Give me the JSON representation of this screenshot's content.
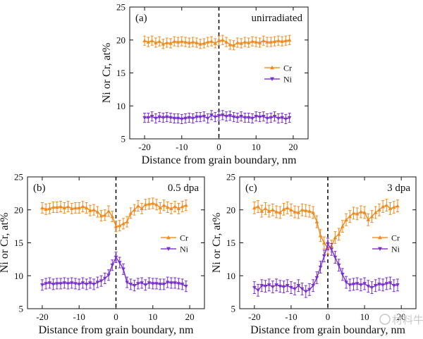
{
  "chart_data": [
    {
      "type": "line",
      "panel_label": "(a)",
      "annotation": "unirradiated",
      "xlabel": "Distance from grain boundary, nm",
      "ylabel": "Ni or Cr, at%",
      "xlim": [
        -24,
        24
      ],
      "ylim": [
        5,
        25
      ],
      "xticks": [
        "-20",
        "-10",
        "0",
        "10",
        "20"
      ],
      "yticks": [
        "5",
        "10",
        "15",
        "20",
        "25"
      ],
      "x": [
        -20,
        -19,
        -18,
        -17,
        -16,
        -15,
        -14,
        -13,
        -12,
        -11,
        -10,
        -9,
        -8,
        -7,
        -6,
        -5,
        -4,
        -3,
        -2,
        -1,
        0,
        1,
        2,
        3,
        4,
        5,
        6,
        7,
        8,
        9,
        10,
        11,
        12,
        13,
        14,
        15,
        16,
        17,
        18,
        19
      ],
      "series": [
        {
          "name": "Cr",
          "color": "#f28b1e",
          "marker": "triangle-up",
          "values": [
            19.9,
            19.7,
            19.9,
            19.6,
            19.8,
            19.4,
            19.6,
            19.5,
            19.8,
            19.7,
            19.8,
            19.7,
            19.6,
            19.7,
            19.6,
            19.4,
            19.5,
            19.7,
            19.8,
            19.5,
            19.9,
            20.0,
            19.7,
            19.3,
            19.2,
            19.6,
            19.5,
            19.7,
            19.6,
            19.8,
            19.7,
            19.6,
            19.9,
            19.7,
            19.7,
            19.8,
            19.9,
            19.8,
            19.9,
            20.0
          ],
          "error": 0.7
        },
        {
          "name": "Ni",
          "color": "#7a2fcf",
          "marker": "triangle-down",
          "values": [
            8.2,
            8.2,
            8.4,
            8.1,
            8.3,
            8.2,
            8.3,
            8.2,
            8.1,
            8.1,
            8.0,
            8.1,
            8.2,
            8.1,
            8.3,
            8.3,
            8.4,
            8.1,
            8.6,
            8.3,
            8.5,
            8.6,
            8.4,
            8.5,
            8.3,
            8.2,
            8.4,
            8.2,
            8.2,
            8.1,
            8.4,
            8.3,
            8.4,
            8.1,
            8.2,
            8.4,
            8.1,
            8.2,
            8.0,
            8.2
          ],
          "error": 0.7
        }
      ],
      "legend": [
        "Cr",
        "Ni"
      ]
    },
    {
      "type": "line",
      "panel_label": "(b)",
      "annotation": "0.5 dpa",
      "xlabel": "Distance from grain boundary, nm",
      "ylabel": "Ni or Cr, at%",
      "xlim": [
        -24,
        24
      ],
      "ylim": [
        5,
        25
      ],
      "xticks": [
        "-20",
        "-10",
        "0",
        "10",
        "20"
      ],
      "yticks": [
        "5",
        "10",
        "15",
        "20",
        "25"
      ],
      "x": [
        -20,
        -19,
        -18,
        -17,
        -16,
        -15,
        -14,
        -13,
        -12,
        -11,
        -10,
        -9,
        -8,
        -7,
        -6,
        -5,
        -4,
        -3,
        -2,
        -1,
        0,
        1,
        2,
        3,
        4,
        5,
        6,
        7,
        8,
        9,
        10,
        11,
        12,
        13,
        14,
        15,
        16,
        17,
        18,
        19
      ],
      "series": [
        {
          "name": "Cr",
          "color": "#f28b1e",
          "marker": "triangle-up",
          "values": [
            20.3,
            20.1,
            20.2,
            20.4,
            20.4,
            20.5,
            20.3,
            20.5,
            20.2,
            20.3,
            20.3,
            20.5,
            20.3,
            19.9,
            20.0,
            19.7,
            19.1,
            19.2,
            19.8,
            19.0,
            17.5,
            17.6,
            17.9,
            18.2,
            19.5,
            20.0,
            20.6,
            20.2,
            20.8,
            20.9,
            21.0,
            20.8,
            20.3,
            20.7,
            20.4,
            20.2,
            20.5,
            20.2,
            20.5,
            20.7
          ],
          "error": 0.8
        },
        {
          "name": "Ni",
          "color": "#7a2fcf",
          "marker": "triangle-down",
          "values": [
            8.6,
            8.8,
            8.9,
            8.7,
            8.8,
            8.8,
            8.9,
            8.8,
            8.9,
            8.8,
            8.7,
            8.9,
            8.7,
            8.9,
            8.7,
            9.0,
            9.2,
            9.6,
            10.1,
            11.6,
            12.8,
            12.0,
            11.0,
            9.0,
            8.7,
            8.5,
            8.8,
            8.9,
            8.6,
            8.9,
            8.8,
            8.8,
            8.7,
            8.7,
            9.0,
            8.9,
            8.9,
            8.8,
            8.7,
            8.4
          ],
          "error": 0.8
        }
      ],
      "legend": [
        "Cr",
        "Ni"
      ]
    },
    {
      "type": "line",
      "panel_label": "(c)",
      "annotation": "3 dpa",
      "xlabel": "Distance from grain boundary, nm",
      "ylabel": "Ni or Cr, at%",
      "xlim": [
        -24,
        24
      ],
      "ylim": [
        5,
        25
      ],
      "xticks": [
        "-20",
        "-10",
        "0",
        "10",
        "20"
      ],
      "yticks": [
        "5",
        "10",
        "15",
        "20",
        "25"
      ],
      "x": [
        -20,
        -19,
        -18,
        -17,
        -16,
        -15,
        -14,
        -13,
        -12,
        -11,
        -10,
        -9,
        -8,
        -7,
        -6,
        -5,
        -4,
        -3,
        -2,
        -1,
        0,
        1,
        2,
        3,
        4,
        5,
        6,
        7,
        8,
        9,
        10,
        11,
        12,
        13,
        14,
        15,
        16,
        17,
        18,
        19
      ],
      "series": [
        {
          "name": "Cr",
          "color": "#f28b1e",
          "marker": "triangle-up",
          "values": [
            20.3,
            20.5,
            19.8,
            20.2,
            19.8,
            20.0,
            19.7,
            19.6,
            20.1,
            20.3,
            20.0,
            19.7,
            19.6,
            20.0,
            19.9,
            19.8,
            19.6,
            18.2,
            16.1,
            15.0,
            14.2,
            14.5,
            15.8,
            16.3,
            17.5,
            18.5,
            19.0,
            19.5,
            19.4,
            19.7,
            19.6,
            18.5,
            19.0,
            19.6,
            20.0,
            20.5,
            20.7,
            20.2,
            20.4,
            20.6
          ],
          "error": 0.9
        },
        {
          "name": "Ni",
          "color": "#7a2fcf",
          "marker": "triangle-down",
          "values": [
            8.2,
            7.8,
            8.5,
            8.4,
            8.6,
            8.3,
            8.6,
            8.4,
            8.3,
            8.5,
            8.2,
            8.0,
            8.5,
            8.0,
            7.6,
            7.9,
            8.5,
            9.7,
            11.3,
            13.0,
            14.8,
            14.0,
            12.8,
            11.6,
            10.2,
            9.0,
            8.6,
            8.7,
            8.8,
            8.6,
            8.8,
            8.4,
            8.2,
            8.5,
            8.7,
            8.6,
            8.8,
            8.9,
            8.5,
            8.6
          ],
          "error": 0.9
        }
      ],
      "legend": [
        "Cr",
        "Ni"
      ]
    }
  ],
  "watermark": "材料牛"
}
